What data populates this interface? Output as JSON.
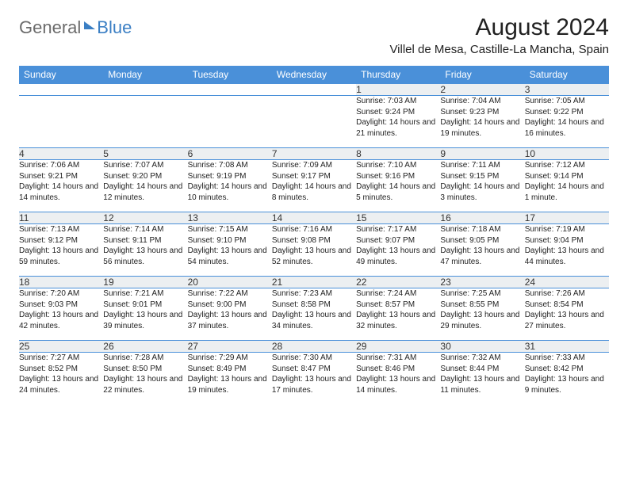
{
  "logo": {
    "general": "General",
    "blue": "Blue"
  },
  "title": "August 2024",
  "location": "Villel de Mesa, Castille-La Mancha, Spain",
  "colors": {
    "header_bg": "#4a90d9",
    "header_fg": "#ffffff",
    "daynum_bg": "#eceff1",
    "border": "#4a90d9",
    "logo_gray": "#6b6b6b",
    "logo_blue": "#3b7fc4"
  },
  "day_headers": [
    "Sunday",
    "Monday",
    "Tuesday",
    "Wednesday",
    "Thursday",
    "Friday",
    "Saturday"
  ],
  "weeks": [
    {
      "nums": [
        "",
        "",
        "",
        "",
        "1",
        "2",
        "3"
      ],
      "details": [
        "",
        "",
        "",
        "",
        "Sunrise: 7:03 AM\nSunset: 9:24 PM\nDaylight: 14 hours and 21 minutes.",
        "Sunrise: 7:04 AM\nSunset: 9:23 PM\nDaylight: 14 hours and 19 minutes.",
        "Sunrise: 7:05 AM\nSunset: 9:22 PM\nDaylight: 14 hours and 16 minutes."
      ]
    },
    {
      "nums": [
        "4",
        "5",
        "6",
        "7",
        "8",
        "9",
        "10"
      ],
      "details": [
        "Sunrise: 7:06 AM\nSunset: 9:21 PM\nDaylight: 14 hours and 14 minutes.",
        "Sunrise: 7:07 AM\nSunset: 9:20 PM\nDaylight: 14 hours and 12 minutes.",
        "Sunrise: 7:08 AM\nSunset: 9:19 PM\nDaylight: 14 hours and 10 minutes.",
        "Sunrise: 7:09 AM\nSunset: 9:17 PM\nDaylight: 14 hours and 8 minutes.",
        "Sunrise: 7:10 AM\nSunset: 9:16 PM\nDaylight: 14 hours and 5 minutes.",
        "Sunrise: 7:11 AM\nSunset: 9:15 PM\nDaylight: 14 hours and 3 minutes.",
        "Sunrise: 7:12 AM\nSunset: 9:14 PM\nDaylight: 14 hours and 1 minute."
      ]
    },
    {
      "nums": [
        "11",
        "12",
        "13",
        "14",
        "15",
        "16",
        "17"
      ],
      "details": [
        "Sunrise: 7:13 AM\nSunset: 9:12 PM\nDaylight: 13 hours and 59 minutes.",
        "Sunrise: 7:14 AM\nSunset: 9:11 PM\nDaylight: 13 hours and 56 minutes.",
        "Sunrise: 7:15 AM\nSunset: 9:10 PM\nDaylight: 13 hours and 54 minutes.",
        "Sunrise: 7:16 AM\nSunset: 9:08 PM\nDaylight: 13 hours and 52 minutes.",
        "Sunrise: 7:17 AM\nSunset: 9:07 PM\nDaylight: 13 hours and 49 minutes.",
        "Sunrise: 7:18 AM\nSunset: 9:05 PM\nDaylight: 13 hours and 47 minutes.",
        "Sunrise: 7:19 AM\nSunset: 9:04 PM\nDaylight: 13 hours and 44 minutes."
      ]
    },
    {
      "nums": [
        "18",
        "19",
        "20",
        "21",
        "22",
        "23",
        "24"
      ],
      "details": [
        "Sunrise: 7:20 AM\nSunset: 9:03 PM\nDaylight: 13 hours and 42 minutes.",
        "Sunrise: 7:21 AM\nSunset: 9:01 PM\nDaylight: 13 hours and 39 minutes.",
        "Sunrise: 7:22 AM\nSunset: 9:00 PM\nDaylight: 13 hours and 37 minutes.",
        "Sunrise: 7:23 AM\nSunset: 8:58 PM\nDaylight: 13 hours and 34 minutes.",
        "Sunrise: 7:24 AM\nSunset: 8:57 PM\nDaylight: 13 hours and 32 minutes.",
        "Sunrise: 7:25 AM\nSunset: 8:55 PM\nDaylight: 13 hours and 29 minutes.",
        "Sunrise: 7:26 AM\nSunset: 8:54 PM\nDaylight: 13 hours and 27 minutes."
      ]
    },
    {
      "nums": [
        "25",
        "26",
        "27",
        "28",
        "29",
        "30",
        "31"
      ],
      "details": [
        "Sunrise: 7:27 AM\nSunset: 8:52 PM\nDaylight: 13 hours and 24 minutes.",
        "Sunrise: 7:28 AM\nSunset: 8:50 PM\nDaylight: 13 hours and 22 minutes.",
        "Sunrise: 7:29 AM\nSunset: 8:49 PM\nDaylight: 13 hours and 19 minutes.",
        "Sunrise: 7:30 AM\nSunset: 8:47 PM\nDaylight: 13 hours and 17 minutes.",
        "Sunrise: 7:31 AM\nSunset: 8:46 PM\nDaylight: 13 hours and 14 minutes.",
        "Sunrise: 7:32 AM\nSunset: 8:44 PM\nDaylight: 13 hours and 11 minutes.",
        "Sunrise: 7:33 AM\nSunset: 8:42 PM\nDaylight: 13 hours and 9 minutes."
      ]
    }
  ]
}
